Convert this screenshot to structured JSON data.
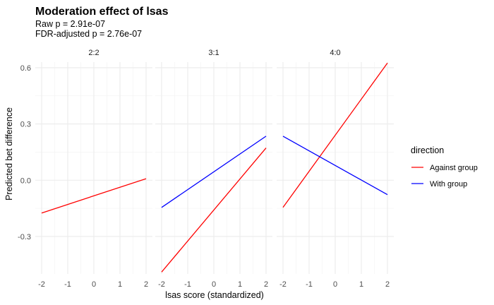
{
  "chart_data": {
    "type": "line",
    "title": "Moderation effect of lsas",
    "subtitle_lines": [
      "Raw p = 2.91e-07",
      "FDR-adjusted p = 2.76e-07"
    ],
    "xlabel": "lsas score (standardized)",
    "ylabel": "Predicted bet difference",
    "xlim": [
      -2,
      2
    ],
    "ylim": [
      -0.5,
      0.63
    ],
    "x_ticks": [
      -2,
      -1,
      0,
      1,
      2
    ],
    "x_tick_labels": [
      "-2",
      "-1",
      "0",
      "1",
      "2"
    ],
    "y_ticks": [
      -0.3,
      0.0,
      0.3,
      0.6
    ],
    "y_tick_labels": [
      "-0.3",
      "0.0",
      "0.3",
      "0.6"
    ],
    "grid": true,
    "legend": {
      "title": "direction",
      "position": "right",
      "entries": [
        {
          "label": "Against group",
          "color": "#ff0000"
        },
        {
          "label": "With group",
          "color": "#0000ff"
        }
      ]
    },
    "facets": [
      {
        "label": "2:2",
        "series": [
          {
            "name": "Against group",
            "color": "#ff0000",
            "x": [
              -2,
              2
            ],
            "y": [
              -0.175,
              0.008
            ]
          }
        ]
      },
      {
        "label": "3:1",
        "series": [
          {
            "name": "Against group",
            "color": "#ff0000",
            "x": [
              -2,
              2
            ],
            "y": [
              -0.49,
              0.172
            ]
          },
          {
            "name": "With group",
            "color": "#0000ff",
            "x": [
              -2,
              2
            ],
            "y": [
              -0.145,
              0.235
            ]
          }
        ]
      },
      {
        "label": "4:0",
        "series": [
          {
            "name": "Against group",
            "color": "#ff0000",
            "x": [
              -2,
              2
            ],
            "y": [
              -0.145,
              0.625
            ]
          },
          {
            "name": "With group",
            "color": "#0000ff",
            "x": [
              -2,
              2
            ],
            "y": [
              0.235,
              -0.077
            ]
          }
        ]
      }
    ]
  }
}
